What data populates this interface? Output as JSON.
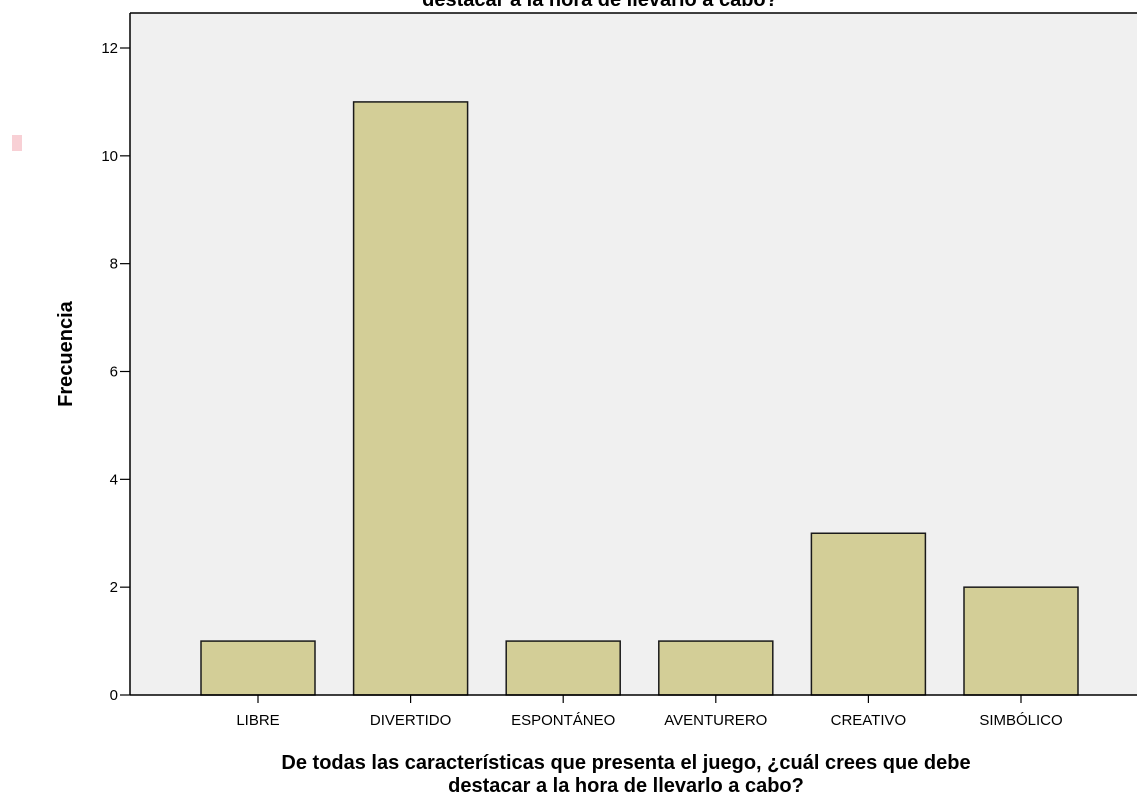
{
  "chart_data": {
    "type": "bar",
    "title_partial": "destacar a la hora de llevarlo a cabo?",
    "categories": [
      "LIBRE",
      "DIVERTIDO",
      "ESPONTÁNEO",
      "AVENTURERO",
      "CREATIVO",
      "SIMBÓLICO"
    ],
    "values": [
      1,
      11,
      1,
      1,
      3,
      2
    ],
    "xlabel_line1": "De todas las características que presenta el juego, ¿cuál crees que debe",
    "xlabel_line2": "destacar a la hora de llevarlo a cabo?",
    "ylabel": "Frecuencia",
    "ylim": [
      0,
      12.5
    ],
    "yticks": [
      0,
      2,
      4,
      6,
      8,
      10,
      12
    ],
    "grid": false,
    "colors": {
      "bar_fill": "#d3ce97",
      "bar_stroke": "#1a1a1a",
      "plot_background": "#f0f0f0",
      "axis": "#000000"
    }
  }
}
